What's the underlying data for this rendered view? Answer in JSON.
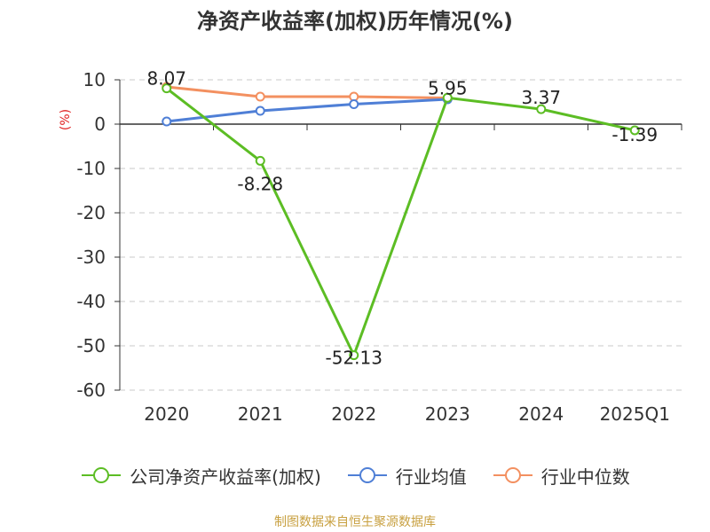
{
  "title": "净资产收益率(加权)历年情况(%)",
  "source": "制图数据来自恒生聚源数据库",
  "chart_data": {
    "type": "line",
    "title": "净资产收益率(加权)历年情况(%)",
    "ylabel": "(%)",
    "xlabel": "",
    "categories": [
      "2020",
      "2021",
      "2022",
      "2023",
      "2024",
      "2025Q1"
    ],
    "ylim": [
      -60,
      10
    ],
    "yticks": [
      10,
      0,
      -10,
      -20,
      -30,
      -40,
      -50,
      -60
    ],
    "grid": true,
    "legend_position": "bottom",
    "series": [
      {
        "name": "公司净资产收益率(加权)",
        "color": "#5cbd24",
        "values": [
          8.07,
          -8.28,
          -52.13,
          5.95,
          3.37,
          -1.39
        ],
        "labels": [
          "8.07",
          "-8.28",
          "-52.13",
          "5.95",
          "3.37",
          "-1.39"
        ]
      },
      {
        "name": "行业均值",
        "color": "#4f7fd6",
        "values": [
          0.6,
          3.0,
          4.5,
          5.6,
          null,
          null
        ]
      },
      {
        "name": "行业中位数",
        "color": "#f39060",
        "values": [
          8.4,
          6.2,
          6.2,
          5.9,
          null,
          null
        ]
      }
    ]
  }
}
